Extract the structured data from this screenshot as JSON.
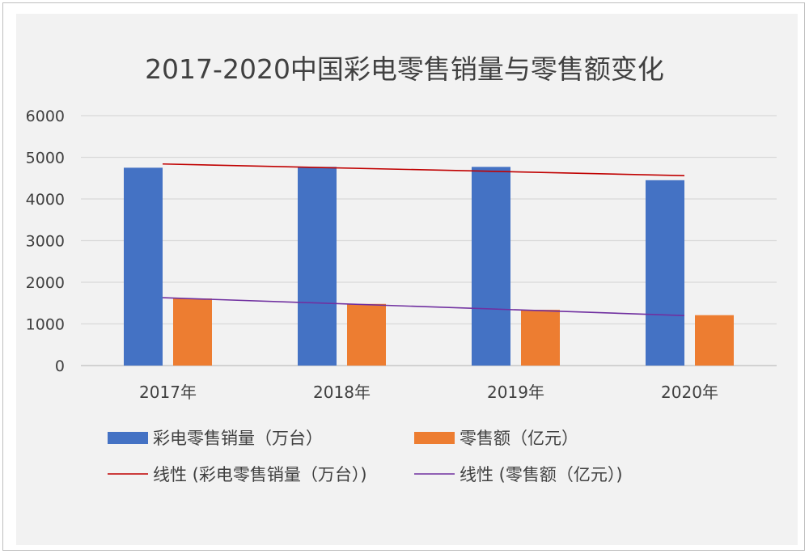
{
  "chart_data": {
    "type": "bar",
    "title": "2017-2020中国彩电零售销量与零售额变化",
    "categories": [
      "2017年",
      "2018年",
      "2019年",
      "2020年"
    ],
    "ylim": [
      0,
      6000
    ],
    "yticks": [
      0,
      1000,
      2000,
      3000,
      4000,
      5000,
      6000
    ],
    "grid": true,
    "legend_position": "bottom",
    "series": [
      {
        "name": "彩电零售销量（万台）",
        "values": [
          4750,
          4770,
          4770,
          4450
        ],
        "color": "#4472c4"
      },
      {
        "name": "零售额（亿元）",
        "values": [
          1610,
          1480,
          1340,
          1210
        ],
        "color": "#ed7d31"
      }
    ],
    "trendlines": [
      {
        "name": "线性 (彩电零售销量（万台）)",
        "color": "#c00000",
        "start": 4840,
        "end": 4560
      },
      {
        "name": "线性 (零售额（亿元）)",
        "color": "#7030a0",
        "start": 1630,
        "end": 1200
      }
    ]
  }
}
